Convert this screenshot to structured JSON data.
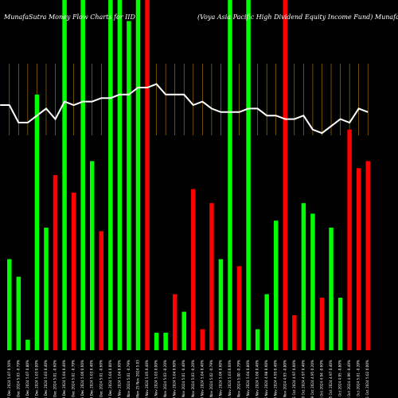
{
  "header": {
    "left": "MunafaSutra  Money Flow  Charts for IID",
    "right": "(Voya  Asia  Pacific High Dividend Equity Income   Fund) MunafaSutra.com"
  },
  "colors": {
    "background": "#000000",
    "up": "#00ff00",
    "down": "#ff0000",
    "grid": "#b8860b",
    "line": "#ffffff"
  },
  "chart_data": {
    "type": "bar",
    "ylim": [
      0,
      100
    ],
    "grid": "vertical",
    "categories": [
      "Tue 17 Dec 2024 5.07 0.50%",
      "Mon 16 Dec 2024 5.03 -0.79%",
      "Fri 13 Dec 2024 5.07 0.80%",
      "Thu 12 Dec 2024 5.03 0.00%",
      "Wed 11 Dec 2024 5.03 0.40%",
      "Tue 10 Dec 2024 5.01 -0.60%",
      "Mon 09 Dec 2024 5.04 0.40%",
      "Fri 06 Dec 2024 5.02 -0.79%",
      "Thu 05 Dec 2024 5.06 0.60%",
      "Wed 04 Dec 2024 5.03 0.40%",
      "Tue 03 Dec 2024 5.01 -0.60%",
      "Mon 02 Dec 2024 5.04 0.00%",
      "Fri 29 Nov 2024 5.04 0.60%",
      "Tue 26 Nov 2024 5.01 -0.79%",
      "Mon 25 Nov 2024 5.05",
      "Fri 22 Nov 2024 5.05 0.40%",
      "Thu 21 Nov 2024 5.03 0.00%",
      "Wed 20 Nov 2024 5.03 -0.20%",
      "Tue 19 Nov 2024 5.04 0.60%",
      "Mon 18 Nov 2024 5.01 -0.40%",
      "Fri 15 Nov 2024 5.03 -0.20%",
      "Thu 14 Nov 2024 5.04 0.40%",
      "Wed 13 Nov 2024 5.02 -0.79%",
      "Tue 12 Nov 2024 5.06 0.60%",
      "Mon 11 Nov 2024 5.03 0.60%",
      "Fri 08 Nov 2024 5.00 -0.79%",
      "Thu 07 Nov 2024 5.04 0.80%",
      "Wed 06 Nov 2024 5.00 0.40%",
      "Tue 05 Nov 2024 4.98 0.60%",
      "Mon 04 Nov 2024 4.95 0.40%",
      "Fri 01 Nov 2024 4.93 -0.80%",
      "Thu 31 Oct 2024 4.97 0.00%",
      "Wed 30 Oct 2024 4.97 0.40%",
      "Tue 29 Oct 2024 4.95 0.20%",
      "Mon 28 Oct 2024 4.94 -0.60%",
      "Fri 25 Oct 2024 4.97 0.40%",
      "Thu 24 Oct 2024 4.95 -0.80%",
      "Wed 23 Oct 2024 4.99 -0.40%",
      "Tue 22 Oct 2024 5.01 -0.20%",
      "Mon 21 Oct 2024 5.02 0.00%"
    ],
    "series": [
      {
        "values": [
          26,
          21,
          3,
          73,
          35,
          50,
          100,
          45,
          100,
          54,
          34,
          100,
          100,
          94,
          100,
          100,
          5,
          5,
          16,
          11,
          46,
          6,
          42,
          26,
          100,
          24,
          100,
          6,
          16,
          37,
          100,
          10,
          42,
          39,
          15,
          35,
          15,
          63,
          52,
          54
        ],
        "directions": [
          "up",
          "up",
          "up",
          "up",
          "up",
          "down",
          "up",
          "down",
          "up",
          "up",
          "down",
          "up",
          "up",
          "up",
          "up",
          "down",
          "up",
          "up",
          "down",
          "up",
          "down",
          "down",
          "down",
          "up",
          "up",
          "down",
          "up",
          "up",
          "up",
          "up",
          "down",
          "down",
          "up",
          "up",
          "down",
          "up",
          "up",
          "down",
          "down",
          "down"
        ]
      },
      {
        "values": [
          70,
          65,
          65,
          67,
          69,
          66,
          71,
          70,
          71,
          71,
          72,
          72,
          73,
          73,
          75,
          75,
          76,
          73,
          73,
          73,
          70,
          71,
          69,
          68,
          68,
          68,
          69,
          69,
          67,
          67,
          66,
          66,
          67,
          63,
          62,
          64,
          66,
          65,
          69,
          68
        ]
      }
    ],
    "line_points": [
      [
        -2,
        70
      ],
      [
        2,
        70
      ],
      [
        6,
        65
      ],
      [
        10,
        65
      ],
      [
        14,
        67
      ],
      [
        18,
        69
      ],
      [
        22,
        66
      ],
      [
        26,
        71
      ],
      [
        30,
        70
      ],
      [
        34,
        71
      ],
      [
        38,
        71
      ],
      [
        42,
        72
      ],
      [
        46,
        72
      ],
      [
        50,
        73
      ],
      [
        54,
        73
      ],
      [
        58,
        75
      ],
      [
        62,
        75
      ],
      [
        66,
        76
      ],
      [
        70,
        73
      ],
      [
        74,
        73
      ],
      [
        78,
        73
      ],
      [
        82,
        70
      ],
      [
        86,
        71
      ],
      [
        90,
        69
      ],
      [
        94,
        68
      ],
      [
        98,
        68
      ],
      [
        102,
        68
      ],
      [
        106,
        69
      ],
      [
        110,
        69
      ],
      [
        114,
        67
      ],
      [
        118,
        67
      ],
      [
        122,
        66
      ],
      [
        126,
        66
      ],
      [
        130,
        67
      ],
      [
        134,
        63
      ],
      [
        138,
        62
      ],
      [
        142,
        64
      ],
      [
        146,
        66
      ],
      [
        150,
        65
      ],
      [
        154,
        69
      ],
      [
        158,
        68
      ]
    ]
  }
}
